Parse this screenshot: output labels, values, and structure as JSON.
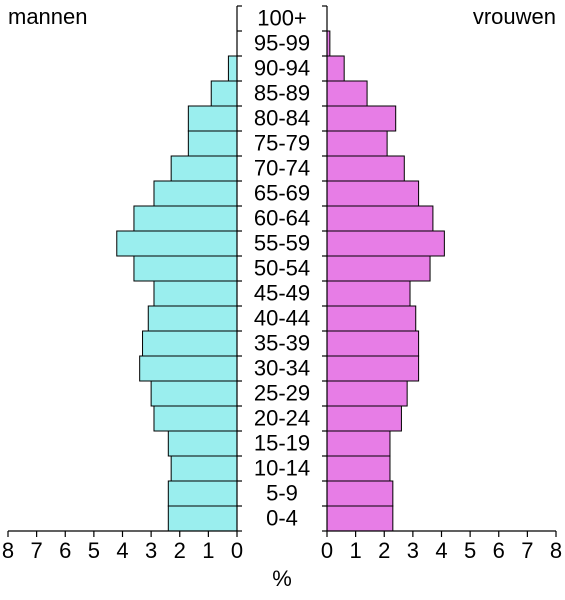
{
  "chart_data": {
    "type": "bar",
    "categories": [
      "0-4",
      "5-9",
      "10-14",
      "15-19",
      "20-24",
      "25-29",
      "30-34",
      "35-39",
      "40-44",
      "45-49",
      "50-54",
      "55-59",
      "60-64",
      "65-69",
      "70-74",
      "75-79",
      "80-84",
      "85-89",
      "90-94",
      "95-99",
      "100+"
    ],
    "series": [
      {
        "name": "mannen",
        "color": "#9aeeee",
        "values": [
          2.4,
          2.4,
          2.3,
          2.4,
          2.9,
          3.0,
          3.4,
          3.3,
          3.1,
          2.9,
          3.6,
          4.2,
          3.6,
          2.9,
          2.3,
          1.7,
          1.7,
          0.9,
          0.3,
          0,
          0
        ]
      },
      {
        "name": "vrouwen",
        "color": "#e77de6",
        "values": [
          2.3,
          2.3,
          2.2,
          2.2,
          2.6,
          2.8,
          3.2,
          3.2,
          3.1,
          2.9,
          3.6,
          4.1,
          3.7,
          3.2,
          2.7,
          2.1,
          2.4,
          1.4,
          0.6,
          0.1,
          0
        ]
      }
    ],
    "x_label": "%",
    "xlim": [
      0,
      8
    ],
    "xticks": [
      0,
      1,
      2,
      3,
      4,
      5,
      6,
      7,
      8
    ]
  }
}
